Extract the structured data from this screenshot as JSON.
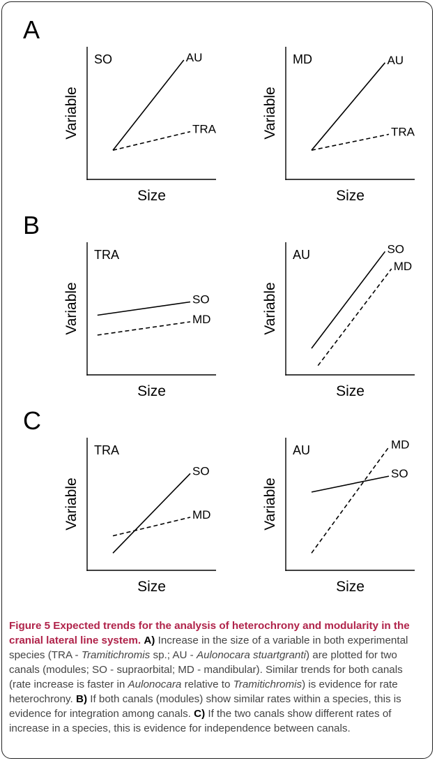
{
  "figure": {
    "panels": [
      {
        "letter": "A"
      },
      {
        "letter": "B"
      },
      {
        "letter": "C"
      }
    ]
  },
  "chart_data": [
    {
      "panel": "A",
      "type": "line",
      "title": "SO",
      "xlabel": "Size",
      "ylabel": "Variable",
      "series": [
        {
          "name": "AU",
          "style": "solid",
          "x": [
            0.2,
            0.75
          ],
          "y": [
            0.22,
            0.9
          ]
        },
        {
          "name": "TRA",
          "style": "dashed",
          "x": [
            0.2,
            0.8
          ],
          "y": [
            0.22,
            0.36
          ]
        }
      ]
    },
    {
      "panel": "A",
      "type": "line",
      "title": "MD",
      "xlabel": "Size",
      "ylabel": "Variable",
      "series": [
        {
          "name": "AU",
          "style": "solid",
          "x": [
            0.2,
            0.77
          ],
          "y": [
            0.22,
            0.88
          ]
        },
        {
          "name": "TRA",
          "style": "dashed",
          "x": [
            0.2,
            0.8
          ],
          "y": [
            0.22,
            0.34
          ]
        }
      ]
    },
    {
      "panel": "B",
      "type": "line",
      "title": "TRA",
      "xlabel": "Size",
      "ylabel": "Variable",
      "series": [
        {
          "name": "SO",
          "style": "solid",
          "x": [
            0.08,
            0.8
          ],
          "y": [
            0.45,
            0.55
          ]
        },
        {
          "name": "MD",
          "style": "dashed",
          "x": [
            0.08,
            0.8
          ],
          "y": [
            0.3,
            0.4
          ]
        }
      ]
    },
    {
      "panel": "B",
      "type": "line",
      "title": "AU",
      "xlabel": "Size",
      "ylabel": "Variable",
      "series": [
        {
          "name": "SO",
          "style": "solid",
          "x": [
            0.2,
            0.77
          ],
          "y": [
            0.2,
            0.93
          ]
        },
        {
          "name": "MD",
          "style": "dashed",
          "x": [
            0.25,
            0.82
          ],
          "y": [
            0.07,
            0.8
          ]
        }
      ]
    },
    {
      "panel": "C",
      "type": "line",
      "title": "TRA",
      "xlabel": "Size",
      "ylabel": "Variable",
      "series": [
        {
          "name": "SO",
          "style": "solid",
          "x": [
            0.2,
            0.8
          ],
          "y": [
            0.13,
            0.73
          ]
        },
        {
          "name": "MD",
          "style": "dashed",
          "x": [
            0.2,
            0.8
          ],
          "y": [
            0.26,
            0.4
          ]
        }
      ]
    },
    {
      "panel": "C",
      "type": "line",
      "title": "AU",
      "xlabel": "Size",
      "ylabel": "Variable",
      "series": [
        {
          "name": "MD",
          "style": "dashed",
          "x": [
            0.2,
            0.8
          ],
          "y": [
            0.13,
            0.93
          ]
        },
        {
          "name": "SO",
          "style": "solid",
          "x": [
            0.2,
            0.8
          ],
          "y": [
            0.59,
            0.71
          ]
        }
      ]
    }
  ],
  "caption": {
    "fig_label": "Figure 5",
    "title_rest": " Expected trends for the analysis of heterochrony and modularity in the cranial lateral line system.",
    "a_label": "A)",
    "a_text_1": " Increase in the size of a variable in both experimental species (TRA - ",
    "tramitichromis": "Tramitichromis",
    "a_text_2": " sp.; AU - ",
    "aulonocara_stuartgranti": "Aulonocara stuartgranti",
    "a_text_3": ") are plotted for two canals (modules; SO - supraorbital; MD - mandibular). Similar trends for both canals (rate increase is faster in ",
    "aulonocara": "Aulonocara",
    "a_text_4": " relative to ",
    "tramitichromis_2": "Tramitichromis",
    "a_text_5": ") is evidence for rate heterochrony.",
    "b_label": "B)",
    "b_text": " If both canals (modules) show similar rates within a species, this is evidence for integration among canals.",
    "c_label": "C)",
    "c_text": " If the two canals show different rates of increase in a species, this is evidence for independence between canals."
  }
}
